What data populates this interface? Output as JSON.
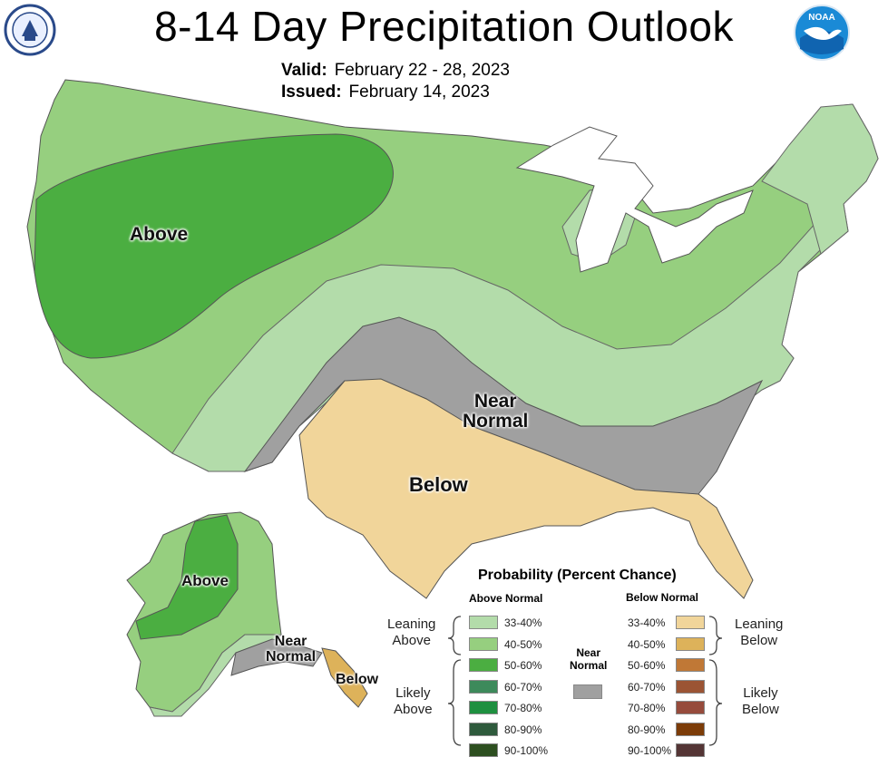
{
  "title": "8-14 Day Precipitation Outlook",
  "valid": {
    "label": "Valid:",
    "value": "February 22 - 28, 2023"
  },
  "issued": {
    "label": "Issued:",
    "value": "February 14, 2023"
  },
  "logos": {
    "left": "doc-seal-icon",
    "right": "noaa-logo-icon"
  },
  "map_labels": {
    "conus_above": "Above",
    "conus_near_1": "Near",
    "conus_near_2": "Normal",
    "conus_below": "Below",
    "ak_above": "Above",
    "ak_near_1": "Near",
    "ak_near_2": "Normal",
    "ak_below": "Below"
  },
  "legend": {
    "title": "Probability (Percent Chance)",
    "above_header": "Above Normal",
    "below_header": "Below Normal",
    "near_header_1": "Near",
    "near_header_2": "Normal",
    "leaning_above_1": "Leaning",
    "leaning_above_2": "Above",
    "likely_above_1": "Likely",
    "likely_above_2": "Above",
    "leaning_below_1": "Leaning",
    "leaning_below_2": "Below",
    "likely_below_1": "Likely",
    "likely_below_2": "Below",
    "above": [
      {
        "label": "33-40%",
        "color": "#b3dcaa"
      },
      {
        "label": "40-50%",
        "color": "#96cf7f"
      },
      {
        "label": "50-60%",
        "color": "#4bae41"
      },
      {
        "label": "60-70%",
        "color": "#3d8a5b"
      },
      {
        "label": "70-80%",
        "color": "#1e9040"
      },
      {
        "label": "80-90%",
        "color": "#2e5a3c"
      },
      {
        "label": "90-100%",
        "color": "#2d4f20"
      }
    ],
    "below": [
      {
        "label": "33-40%",
        "color": "#f1d59a"
      },
      {
        "label": "40-50%",
        "color": "#ddb25a"
      },
      {
        "label": "50-60%",
        "color": "#c07836"
      },
      {
        "label": "60-70%",
        "color": "#9b5434"
      },
      {
        "label": "70-80%",
        "color": "#964b3c"
      },
      {
        "label": "80-90%",
        "color": "#7c3c08"
      },
      {
        "label": "90-100%",
        "color": "#543535"
      }
    ],
    "near_color": "#a0a0a0"
  }
}
